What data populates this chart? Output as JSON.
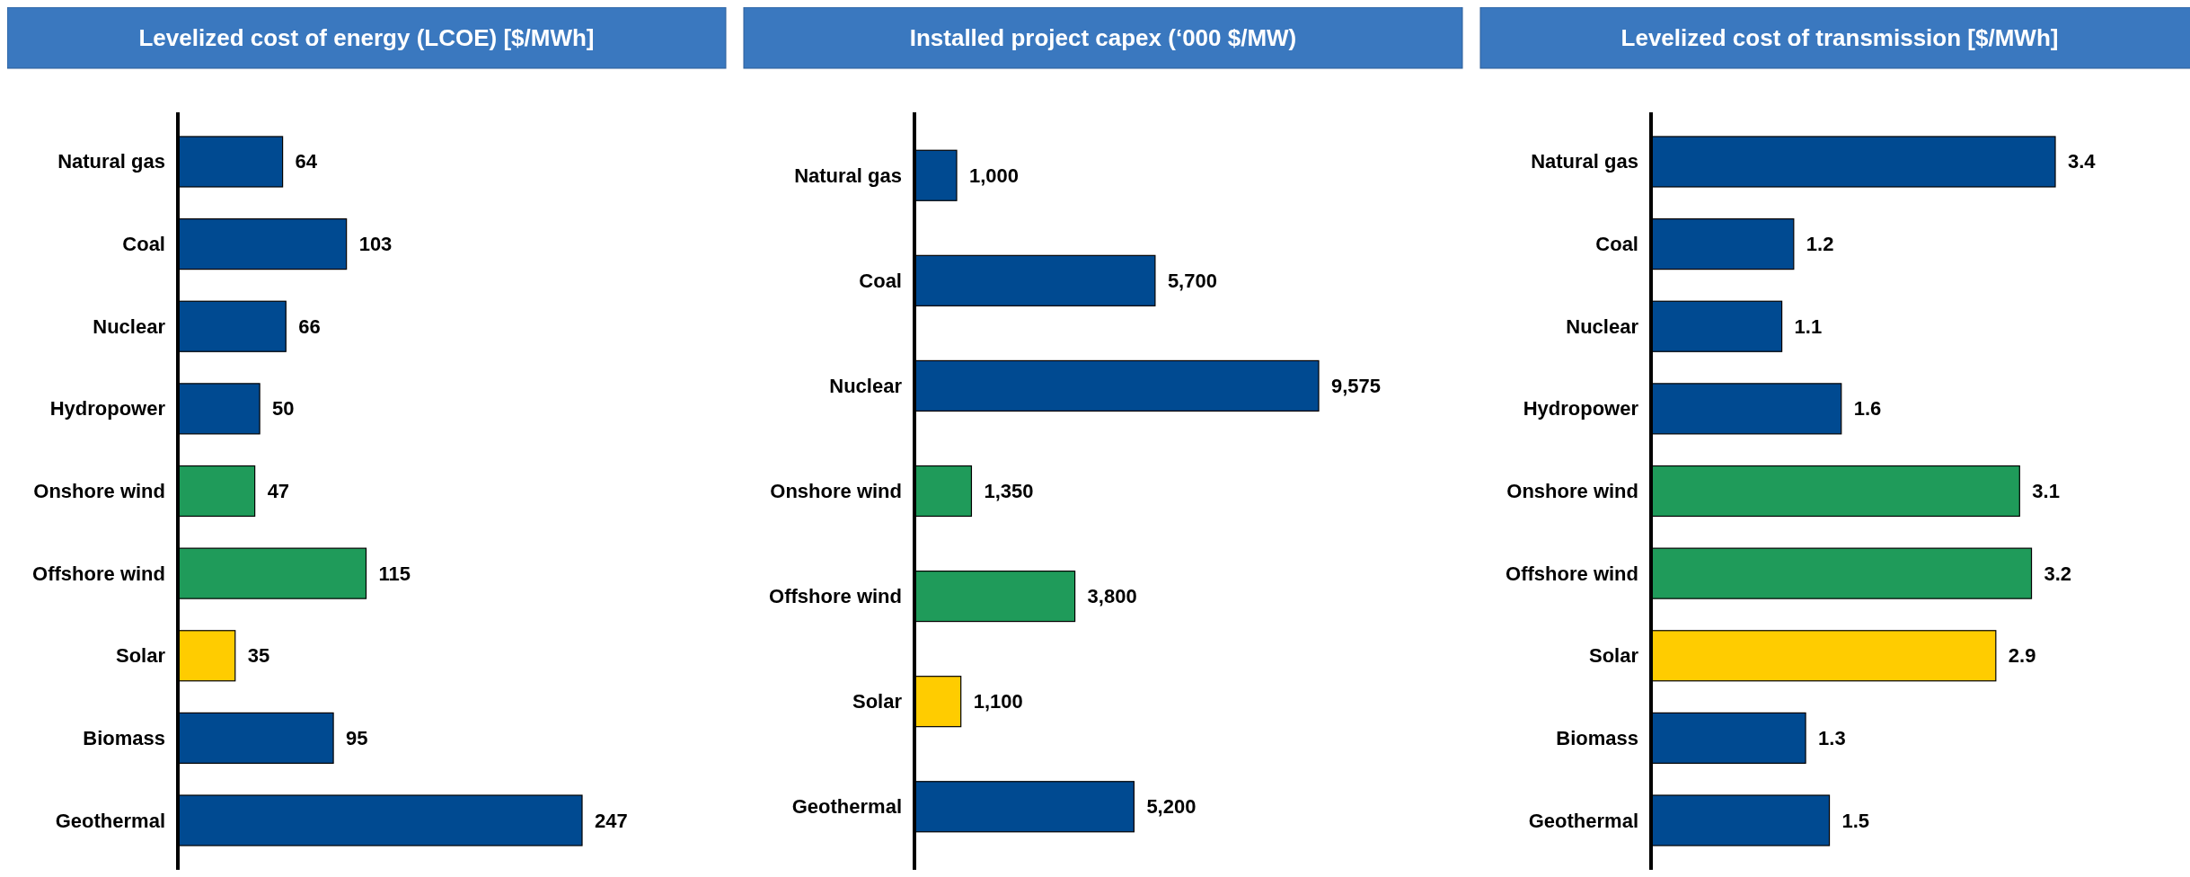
{
  "chart_data": [
    {
      "type": "bar",
      "orientation": "horizontal",
      "title": "Levelized cost of energy (LCOE) [$/MWh]",
      "categories": [
        "Natural gas",
        "Coal",
        "Nuclear",
        "Hydropower",
        "Onshore wind",
        "Offshore wind",
        "Solar",
        "Biomass",
        "Geothermal"
      ],
      "values": [
        64,
        103,
        66,
        50,
        47,
        115,
        35,
        95,
        247
      ],
      "colors": [
        "#004a91",
        "#004a91",
        "#004a91",
        "#004a91",
        "#1f9b5a",
        "#1f9b5a",
        "#ffcc00",
        "#004a91",
        "#004a91"
      ],
      "data_labels": true
    },
    {
      "type": "bar",
      "orientation": "horizontal",
      "title": "Installed project capex (‘000 $/MW)",
      "categories": [
        "Natural gas",
        "Coal",
        "Nuclear",
        "Onshore wind",
        "Offshore wind",
        "Solar",
        "Geothermal"
      ],
      "values": [
        1000,
        5700,
        9575,
        1350,
        3800,
        1100,
        5200
      ],
      "value_labels": [
        "1,000",
        "5,700",
        "9,575",
        "1,350",
        "3,800",
        "1,100",
        "5,200"
      ],
      "colors": [
        "#004a91",
        "#004a91",
        "#004a91",
        "#1f9b5a",
        "#1f9b5a",
        "#ffcc00",
        "#004a91"
      ]
    },
    {
      "type": "bar",
      "orientation": "horizontal",
      "title": "Levelized cost of transmission [$/MWh]",
      "categories": [
        "Natural gas",
        "Coal",
        "Nuclear",
        "Hydropower",
        "Onshore wind",
        "Offshore wind",
        "Solar",
        "Biomass",
        "Geothermal"
      ],
      "values": [
        3.4,
        1.2,
        1.1,
        1.6,
        3.1,
        3.2,
        2.9,
        1.3,
        1.5
      ],
      "colors": [
        "#004a91",
        "#004a91",
        "#004a91",
        "#004a91",
        "#1f9b5a",
        "#1f9b5a",
        "#ffcc00",
        "#004a91",
        "#004a91"
      ],
      "data_labels": true
    }
  ]
}
